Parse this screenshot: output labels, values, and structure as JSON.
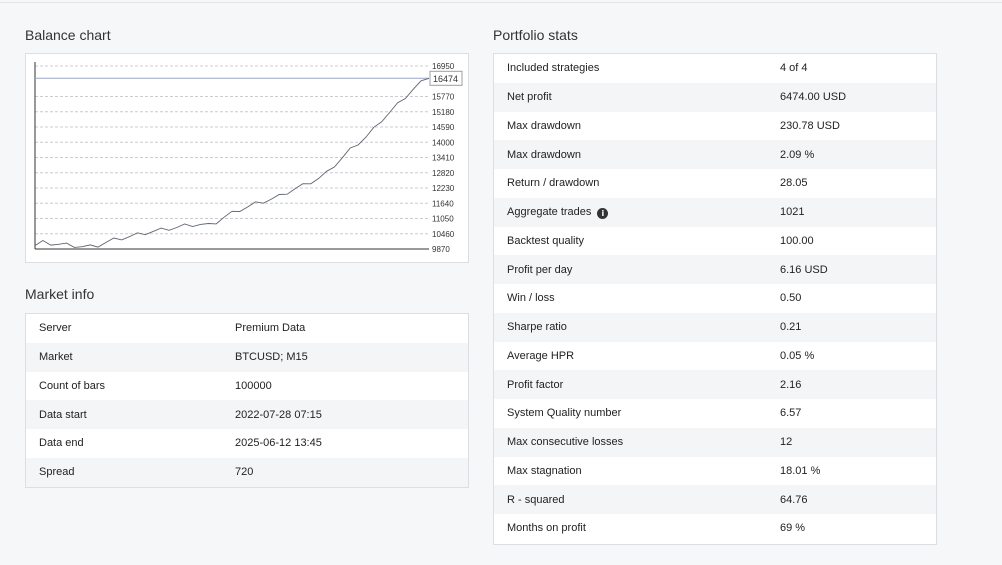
{
  "balance_chart": {
    "title": "Balance chart",
    "y_ticks": [
      16950,
      15770,
      15180,
      14590,
      14000,
      13410,
      12820,
      12230,
      11640,
      11050,
      10460,
      9870
    ],
    "current_value": "16474",
    "chart_data": {
      "type": "line",
      "title": "",
      "xlabel": "",
      "ylabel": "",
      "ylim": [
        9870,
        16950
      ],
      "grid": true,
      "x": [
        0,
        2,
        4,
        6,
        8,
        10,
        12,
        14,
        16,
        18,
        20,
        22,
        24,
        26,
        28,
        30,
        32,
        34,
        36,
        38,
        40,
        42,
        44,
        46,
        48,
        50,
        52,
        54,
        56,
        58,
        60,
        62,
        64,
        66,
        68,
        70,
        72,
        74,
        76,
        78,
        80,
        82,
        84,
        86,
        88,
        90,
        92,
        94,
        96,
        98,
        100
      ],
      "series": [
        {
          "values": [
            10000,
            10120,
            10080,
            10050,
            10020,
            9990,
            9960,
            9950,
            10000,
            10120,
            10220,
            10280,
            10350,
            10420,
            10480,
            10550,
            10600,
            10650,
            10700,
            10760,
            10800,
            10820,
            10780,
            10900,
            11100,
            11250,
            11380,
            11500,
            11620,
            11700,
            11800,
            11900,
            12050,
            12200,
            12320,
            12450,
            12600,
            12800,
            13100,
            13400,
            13700,
            13950,
            14200,
            14500,
            14850,
            15150,
            15450,
            15750,
            16050,
            16300,
            16474
          ]
        }
      ]
    }
  },
  "market_info": {
    "title": "Market info",
    "rows": [
      {
        "label": "Server",
        "value": "Premium Data"
      },
      {
        "label": "Market",
        "value": "BTCUSD; M15"
      },
      {
        "label": "Count of bars",
        "value": "100000"
      },
      {
        "label": "Data start",
        "value": "2022-07-28 07:15"
      },
      {
        "label": "Data end",
        "value": "2025-06-12 13:45"
      },
      {
        "label": "Spread",
        "value": "720"
      }
    ]
  },
  "portfolio_stats": {
    "title": "Portfolio stats",
    "rows": [
      {
        "label": "Included strategies",
        "value": "4 of 4"
      },
      {
        "label": "Net profit",
        "value": "6474.00 USD"
      },
      {
        "label": "Max drawdown",
        "value": "230.78 USD"
      },
      {
        "label": "Max drawdown",
        "value": "2.09 %"
      },
      {
        "label": "Return / drawdown",
        "value": "28.05"
      },
      {
        "label": "Aggregate trades",
        "value": "1021",
        "icon": "info-icon"
      },
      {
        "label": "Backtest quality",
        "value": "100.00"
      },
      {
        "label": "Profit per day",
        "value": "6.16 USD"
      },
      {
        "label": "Win / loss",
        "value": "0.50"
      },
      {
        "label": "Sharpe ratio",
        "value": "0.21"
      },
      {
        "label": "Average HPR",
        "value": "0.05 %"
      },
      {
        "label": "Profit factor",
        "value": "2.16"
      },
      {
        "label": "System Quality number",
        "value": "6.57"
      },
      {
        "label": "Max consecutive losses",
        "value": "12"
      },
      {
        "label": "Max stagnation",
        "value": "18.01 %"
      },
      {
        "label": "R - squared",
        "value": "64.76"
      },
      {
        "label": "Months on profit",
        "value": "69 %"
      }
    ]
  }
}
